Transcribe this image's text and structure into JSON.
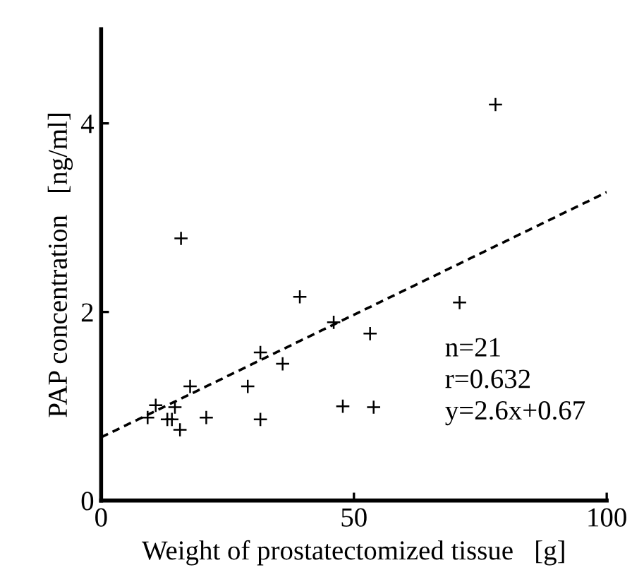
{
  "chart_data": {
    "type": "scatter",
    "xlabel": "Weight of prostatectomized tissue   [g]",
    "ylabel": "PAP concentration   [ng/ml]",
    "xlim": [
      0,
      100
    ],
    "ylim": [
      0,
      5
    ],
    "xticks": [
      0,
      50,
      100
    ],
    "yticks": [
      0,
      2,
      4
    ],
    "grid": false,
    "legend": false,
    "marker": "cross",
    "series": [
      {
        "color": "#000000",
        "x": [
          78,
          15.8,
          39.3,
          70.9,
          46,
          53.2,
          31.5,
          35.9,
          17.6,
          29,
          10.8,
          14.6,
          47.8,
          53.9,
          9.2,
          13.1,
          14,
          20.8,
          31.5,
          15.6
        ],
        "values": [
          4.2,
          2.78,
          2.16,
          2.1,
          1.89,
          1.77,
          1.57,
          1.45,
          1.21,
          1.21,
          1.01,
          0.99,
          1.0,
          0.99,
          0.88,
          0.86,
          0.86,
          0.88,
          0.86,
          0.75
        ]
      },
      {
        "type": "line",
        "color": "#000000",
        "line_style": "dashed",
        "marker": "none",
        "x": [
          0,
          100
        ],
        "values": [
          0.67,
          3.27
        ]
      }
    ],
    "annotations": [
      "n=21",
      "r=0.632",
      "y=2.6x+0.67"
    ]
  }
}
